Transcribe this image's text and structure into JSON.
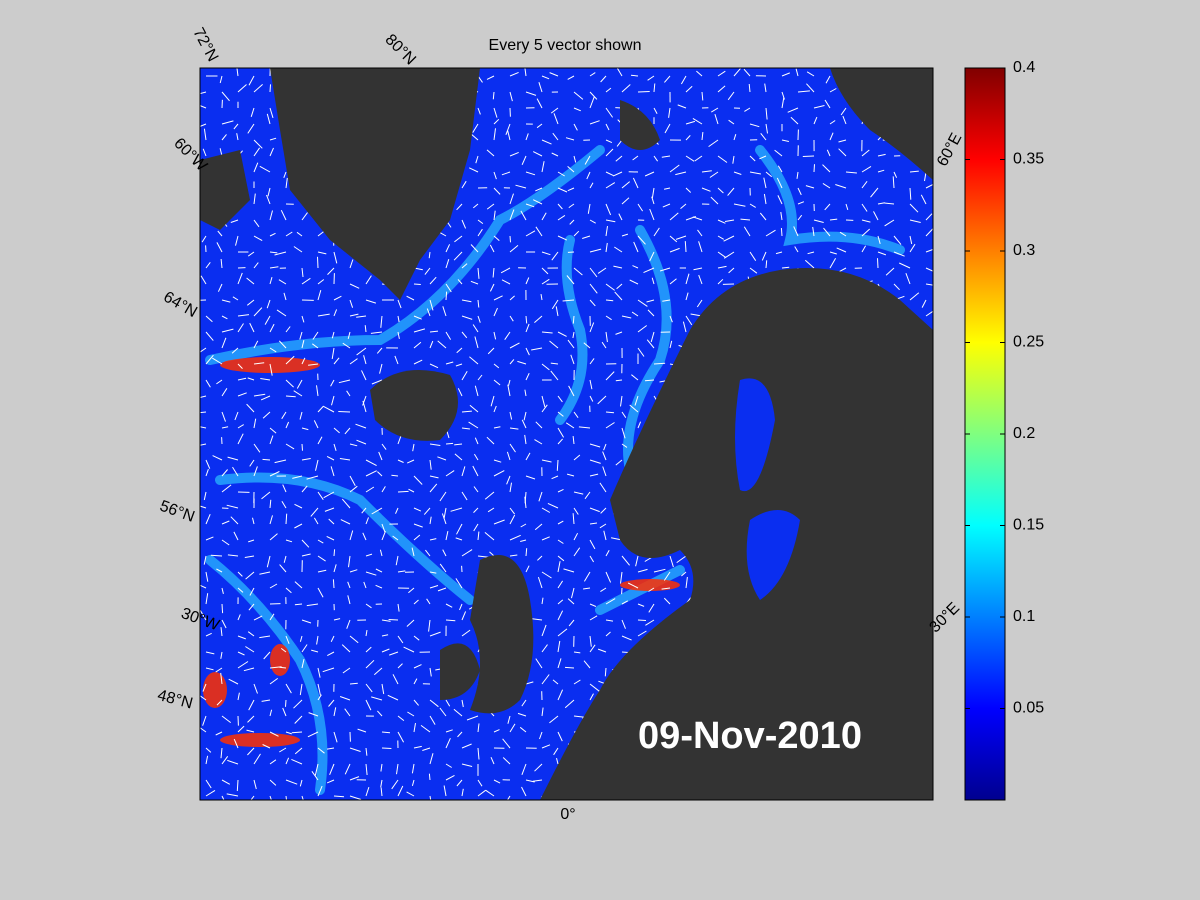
{
  "chart_data": {
    "type": "map",
    "title": "Every 5 vector shown",
    "annotation": "09-Nov-2010",
    "graticule_labels": [
      "72°N",
      "80°N",
      "60°W",
      "64°N",
      "56°N",
      "30°W",
      "48°N",
      "0°",
      "30°E",
      "60°E"
    ],
    "colorbar": {
      "colormap": "jet",
      "lim": [
        0,
        0.4
      ],
      "ticks": [
        0.05,
        0.1,
        0.15,
        0.2,
        0.25,
        0.3,
        0.35,
        0.4
      ]
    }
  }
}
